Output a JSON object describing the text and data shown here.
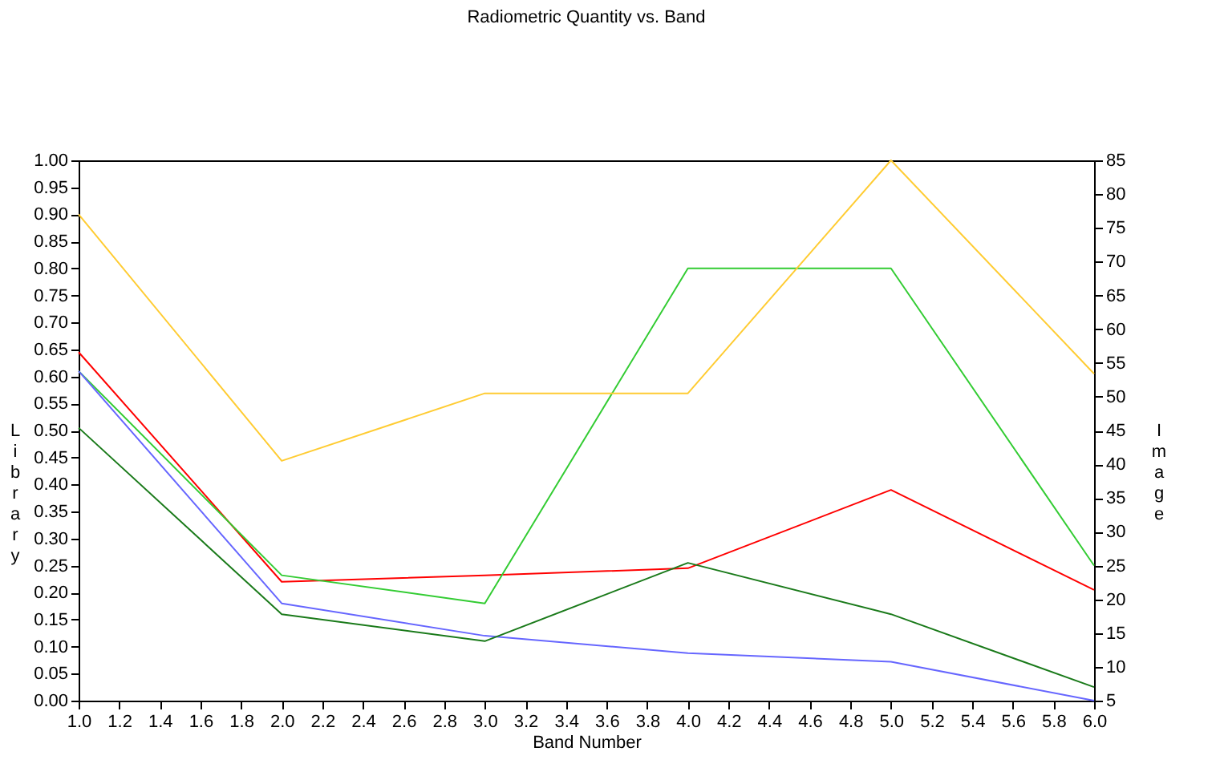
{
  "chart_data": {
    "type": "line",
    "title": "Radiometric Quantity vs. Band",
    "xlabel": "Band Number",
    "ylabel": "Library",
    "y2label": "Image",
    "x": [
      1,
      2,
      3,
      4,
      5,
      6
    ],
    "series": [
      {
        "color": "#ffcc33",
        "values": [
          77,
          40.5,
          50.5,
          50.5,
          85,
          53.4
        ],
        "axis": "y2"
      },
      {
        "color": "#ff0000",
        "values": [
          0.645,
          0.22,
          0.232,
          0.245,
          0.39,
          0.205
        ]
      },
      {
        "color": "#33cc33",
        "values": [
          0.61,
          0.232,
          0.18,
          0.8,
          0.8,
          0.25
        ]
      },
      {
        "color": "#6666ff",
        "values": [
          0.61,
          0.18,
          0.12,
          0.088,
          0.072,
          0.0
        ]
      },
      {
        "color": "#1a7a1a",
        "values": [
          0.505,
          0.16,
          0.11,
          0.255,
          0.16,
          0.025
        ]
      }
    ],
    "xlim": [
      1,
      6
    ],
    "xticks": [
      {
        "value": 1,
        "label": "1.0"
      },
      {
        "value": 1.2,
        "label": "1.2"
      },
      {
        "value": 1.4,
        "label": "1.4"
      },
      {
        "value": 1.6,
        "label": "1.6"
      },
      {
        "value": 1.8,
        "label": "1.8"
      },
      {
        "value": 2,
        "label": "2.0"
      },
      {
        "value": 2.2,
        "label": "2.2"
      },
      {
        "value": 2.4,
        "label": "2.4"
      },
      {
        "value": 2.6,
        "label": "2.6"
      },
      {
        "value": 2.8,
        "label": "2.8"
      },
      {
        "value": 3,
        "label": "3.0"
      },
      {
        "value": 3.2,
        "label": "3.2"
      },
      {
        "value": 3.4,
        "label": "3.4"
      },
      {
        "value": 3.6,
        "label": "3.6"
      },
      {
        "value": 3.8,
        "label": "3.8"
      },
      {
        "value": 4,
        "label": "4.0"
      },
      {
        "value": 4.2,
        "label": "4.2"
      },
      {
        "value": 4.4,
        "label": "4.4"
      },
      {
        "value": 4.6,
        "label": "4.6"
      },
      {
        "value": 4.8,
        "label": "4.8"
      },
      {
        "value": 5,
        "label": "5.0"
      },
      {
        "value": 5.2,
        "label": "5.2"
      },
      {
        "value": 5.4,
        "label": "5.4"
      },
      {
        "value": 5.6,
        "label": "5.6"
      },
      {
        "value": 5.8,
        "label": "5.8"
      },
      {
        "value": 6,
        "label": "6.0"
      }
    ],
    "ylim": [
      0,
      1
    ],
    "yticks": [
      {
        "value": 0,
        "label": "0.00"
      },
      {
        "value": 0.05,
        "label": "0.05"
      },
      {
        "value": 0.1,
        "label": "0.10"
      },
      {
        "value": 0.15,
        "label": "0.15"
      },
      {
        "value": 0.2,
        "label": "0.20"
      },
      {
        "value": 0.25,
        "label": "0.25"
      },
      {
        "value": 0.3,
        "label": "0.30"
      },
      {
        "value": 0.35,
        "label": "0.35"
      },
      {
        "value": 0.4,
        "label": "0.40"
      },
      {
        "value": 0.45,
        "label": "0.45"
      },
      {
        "value": 0.5,
        "label": "0.50"
      },
      {
        "value": 0.55,
        "label": "0.55"
      },
      {
        "value": 0.6,
        "label": "0.60"
      },
      {
        "value": 0.65,
        "label": "0.65"
      },
      {
        "value": 0.7,
        "label": "0.70"
      },
      {
        "value": 0.75,
        "label": "0.75"
      },
      {
        "value": 0.8,
        "label": "0.80"
      },
      {
        "value": 0.85,
        "label": "0.85"
      },
      {
        "value": 0.9,
        "label": "0.90"
      },
      {
        "value": 0.95,
        "label": "0.95"
      },
      {
        "value": 1,
        "label": "1.00"
      }
    ],
    "y2lim": [
      5,
      85
    ],
    "y2ticks": [
      5,
      10,
      15,
      20,
      25,
      30,
      35,
      40,
      45,
      50,
      55,
      60,
      65,
      70,
      75,
      80,
      85
    ],
    "grid": false,
    "marker": "none",
    "line_style": "solid"
  }
}
